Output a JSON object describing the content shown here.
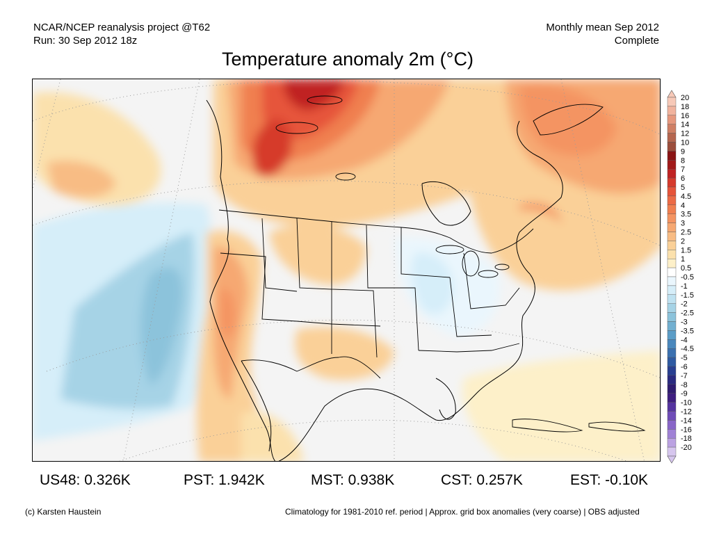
{
  "header": {
    "left_line1": "NCAR/NCEP reanalysis project @T62",
    "left_line2": "Run: 30 Sep 2012 18z",
    "right_line1": "Monthly mean Sep 2012",
    "right_line2": "Complete"
  },
  "title": "Temperature anomaly 2m (°C)",
  "map": {
    "region": "North America",
    "projection": "conic",
    "legend_labels": [
      "20",
      "18",
      "16",
      "14",
      "12",
      "10",
      "9",
      "8",
      "7",
      "6",
      "5",
      "4.5",
      "4",
      "3.5",
      "3",
      "2.5",
      "2",
      "1.5",
      "1",
      "0.5",
      "-0.5",
      "-1",
      "-1.5",
      "-2",
      "-2.5",
      "-3",
      "-3.5",
      "-4",
      "-4.5",
      "-5",
      "-6",
      "-7",
      "-8",
      "-9",
      "-10",
      "-12",
      "-14",
      "-16",
      "-18",
      "-20"
    ],
    "legend_colors": [
      "#f7c9b8",
      "#f1b39e",
      "#e6987e",
      "#cf7f65",
      "#b5664f",
      "#9c4e3c",
      "#8a1414",
      "#a11a1a",
      "#c02323",
      "#d63a2c",
      "#e6543a",
      "#ec6b46",
      "#f07f50",
      "#f49462",
      "#f6a872",
      "#f8bc84",
      "#fad098",
      "#fbe1ad",
      "#fdf0c9",
      "#ffffff",
      "#eaf6fd",
      "#d6eef9",
      "#bfe2f1",
      "#a6d3e6",
      "#8cc3db",
      "#72b0d1",
      "#5b9dc7",
      "#4a88bd",
      "#3b71b0",
      "#2e5aa2",
      "#283f91",
      "#2a2a80",
      "#2f1c70",
      "#3e1e80",
      "#5534a0",
      "#6f4cb8",
      "#8966c8",
      "#a082d6",
      "#bba2e2",
      "#d6c6ee"
    ]
  },
  "stats": {
    "us48": "US48: 0.326K",
    "pst": "PST: 1.942K",
    "mst": "MST: 0.938K",
    "cst": "CST: 0.257K",
    "est": "EST: -0.10K"
  },
  "footer": {
    "credit": "(c) Karsten Haustein",
    "note": "Climatology for 1981-2010 ref. period | Approx. grid box anomalies (very coarse) | OBS adjusted"
  }
}
